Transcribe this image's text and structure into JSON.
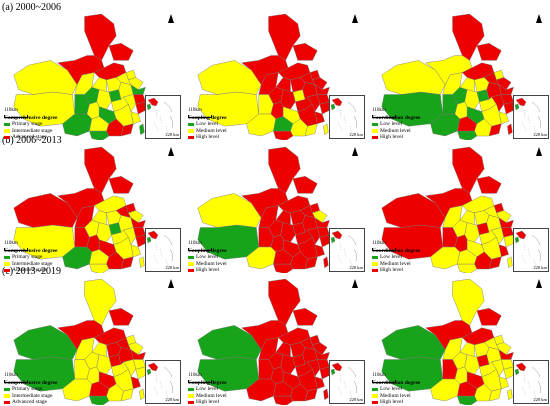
{
  "colors": {
    "green": "#17a31a",
    "yellow": "#ffff00",
    "red": "#ee0000",
    "border": "#7a7a7a"
  },
  "rows": [
    {
      "title": "(a) 2000~2006",
      "panels": [
        {
          "legend_title": "Comprehensive degree",
          "legend_items": [
            "Primary stage",
            "Intermediate stage",
            "Advanced stage"
          ],
          "scale_label": "110km",
          "inset_scale": "220 km",
          "regions": [
            "yellow",
            "red",
            "red",
            "yellow",
            "red",
            "yellow",
            "red",
            "green",
            "yellow",
            "yellow",
            "yellow",
            "yellow",
            "yellow",
            "green",
            "yellow",
            "green",
            "yellow",
            "yellow",
            "red",
            "yellow",
            "red",
            "yellow",
            "green",
            "yellow",
            "green",
            "yellow",
            "green",
            "yellow",
            "red",
            "red",
            "green",
            "yellow",
            "green"
          ]
        },
        {
          "legend_title": "Coupling degree",
          "legend_items": [
            "Low level",
            "Medium level",
            "High level"
          ],
          "scale_label": "110km",
          "inset_scale": "220 km",
          "regions": [
            "yellow",
            "red",
            "red",
            "yellow",
            "red",
            "red",
            "red",
            "red",
            "red",
            "red",
            "red",
            "red",
            "red",
            "yellow",
            "red",
            "red",
            "red",
            "red",
            "red",
            "red",
            "red",
            "red",
            "yellow",
            "red",
            "yellow",
            "red",
            "yellow",
            "green",
            "yellow",
            "yellow",
            "red",
            "green",
            "yellow"
          ]
        },
        {
          "legend_title": "Coordination degree",
          "legend_items": [
            "Low level",
            "Medium level",
            "High level"
          ],
          "scale_label": "110km",
          "inset_scale": "220 km",
          "regions": [
            "yellow",
            "red",
            "red",
            "green",
            "yellow",
            "yellow",
            "red",
            "green",
            "yellow",
            "yellow",
            "yellow",
            "red",
            "red",
            "green",
            "red",
            "red",
            "yellow",
            "yellow",
            "red",
            "red",
            "red",
            "yellow",
            "green",
            "yellow",
            "green",
            "yellow",
            "green",
            "red",
            "yellow",
            "red",
            "green",
            "green",
            "red"
          ]
        }
      ]
    },
    {
      "title": "(b) 2006~2013",
      "panels": [
        {
          "legend_title": "Comprehensive degree",
          "legend_items": [
            "Primary stage",
            "Intermediate stage",
            "Advanced stage"
          ],
          "scale_label": "110km",
          "inset_scale": "220 km",
          "regions": [
            "red",
            "red",
            "red",
            "yellow",
            "red",
            "red",
            "yellow",
            "yellow",
            "yellow",
            "red",
            "yellow",
            "red",
            "yellow",
            "green",
            "yellow",
            "red",
            "yellow",
            "yellow",
            "red",
            "yellow",
            "red",
            "yellow",
            "red",
            "red",
            "red",
            "yellow",
            "green",
            "yellow",
            "red",
            "red",
            "yellow",
            "red",
            "yellow"
          ]
        },
        {
          "legend_title": "Coupling degree",
          "legend_items": [
            "Low level",
            "Medium level",
            "High level"
          ],
          "scale_label": "110km",
          "inset_scale": "220 km",
          "regions": [
            "yellow",
            "red",
            "red",
            "green",
            "red",
            "red",
            "red",
            "red",
            "red",
            "red",
            "red",
            "red",
            "yellow",
            "red",
            "red",
            "red",
            "red",
            "red",
            "red",
            "red",
            "red",
            "red",
            "red",
            "red",
            "red",
            "red",
            "yellow",
            "red",
            "red",
            "red",
            "red",
            "red",
            "red"
          ]
        },
        {
          "legend_title": "Coordination degree",
          "legend_items": [
            "Low level",
            "Medium level",
            "High level"
          ],
          "scale_label": "110km",
          "inset_scale": "220 km",
          "regions": [
            "red",
            "red",
            "red",
            "red",
            "red",
            "yellow",
            "yellow",
            "yellow",
            "yellow",
            "red",
            "yellow",
            "yellow",
            "yellow",
            "red",
            "yellow",
            "red",
            "yellow",
            "yellow",
            "red",
            "yellow",
            "yellow",
            "red",
            "red",
            "red",
            "yellow",
            "yellow",
            "yellow",
            "yellow",
            "red",
            "red",
            "yellow",
            "red",
            "yellow"
          ]
        }
      ]
    },
    {
      "title": "(c) 2013~2019",
      "panels": [
        {
          "legend_title": "Comprehensive degree",
          "legend_items": [
            "Primary stage",
            "Intermediate stage",
            "Advanced stage"
          ],
          "scale_label": "110km",
          "inset_scale": "220 km",
          "regions": [
            "green",
            "yellow",
            "red",
            "green",
            "red",
            "yellow",
            "red",
            "yellow",
            "yellow",
            "yellow",
            "red",
            "red",
            "yellow",
            "red",
            "red",
            "red",
            "yellow",
            "yellow",
            "yellow",
            "yellow",
            "yellow",
            "red",
            "yellow",
            "yellow",
            "red",
            "yellow",
            "yellow",
            "red",
            "yellow",
            "yellow",
            "green",
            "yellow",
            "yellow"
          ]
        },
        {
          "legend_title": "Coupling degree",
          "legend_items": [
            "Low level",
            "Medium level",
            "High level"
          ],
          "scale_label": "110km",
          "inset_scale": "220 km",
          "regions": [
            "green",
            "red",
            "red",
            "green",
            "red",
            "red",
            "red",
            "red",
            "red",
            "red",
            "red",
            "red",
            "red",
            "red",
            "red",
            "red",
            "red",
            "red",
            "red",
            "red",
            "red",
            "red",
            "red",
            "red",
            "red",
            "red",
            "red",
            "red",
            "red",
            "red",
            "red",
            "red",
            "red"
          ]
        },
        {
          "legend_title": "Coordination degree",
          "legend_items": [
            "Low level",
            "Medium level",
            "High level"
          ],
          "scale_label": "110km",
          "inset_scale": "220 km",
          "regions": [
            "green",
            "yellow",
            "red",
            "green",
            "red",
            "yellow",
            "red",
            "yellow",
            "yellow",
            "yellow",
            "yellow",
            "yellow",
            "yellow",
            "red",
            "yellow",
            "red",
            "yellow",
            "yellow",
            "yellow",
            "yellow",
            "yellow",
            "yellow",
            "red",
            "yellow",
            "red",
            "yellow",
            "yellow",
            "red",
            "yellow",
            "yellow",
            "green",
            "red",
            "yellow"
          ]
        }
      ]
    }
  ],
  "north_label": "N"
}
